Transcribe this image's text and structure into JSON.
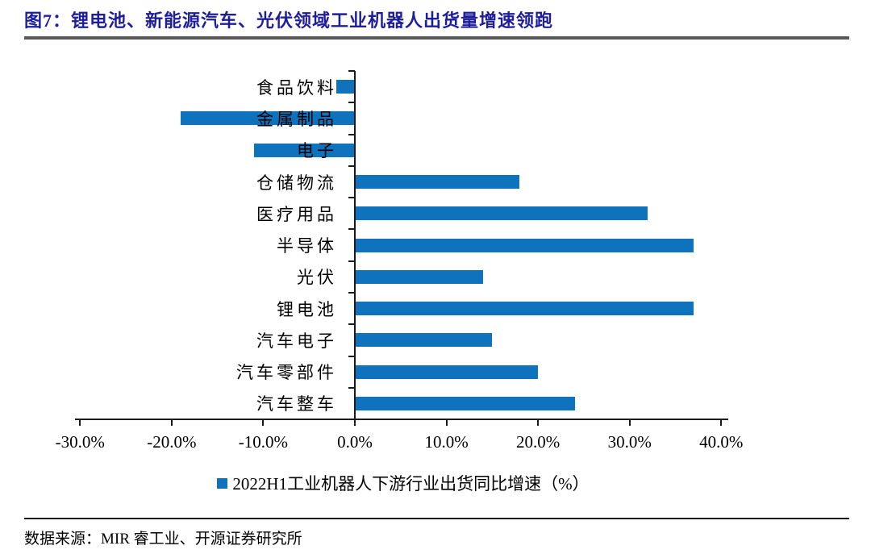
{
  "title": "图7：锂电池、新能源汽车、光伏领域工业机器人出货量增速领跑",
  "source": "数据来源：MIR 睿工业、开源证券研究所",
  "legend": {
    "label": "2022H1工业机器人下游行业出货同比增速（%）"
  },
  "colors": {
    "bar": "#0E73BC",
    "title": "#1E1E9C",
    "title_rule": "#595959",
    "axis": "#1A1A1A"
  },
  "chart_data": {
    "type": "bar",
    "orientation": "horizontal",
    "title": "图7：锂电池、新能源汽车、光伏领域工业机器人出货量增速领跑",
    "categories": [
      "食品饮料",
      "金属制品",
      "电子",
      "仓储物流",
      "医疗用品",
      "半导体",
      "光伏",
      "锂电池",
      "汽车电子",
      "汽车零部件",
      "汽车整车"
    ],
    "values": [
      -2,
      -19,
      -11,
      18,
      32,
      37,
      14,
      37,
      15,
      20,
      24
    ],
    "unit": "%",
    "xlabel": "",
    "ylabel": "",
    "xlim": [
      -30,
      40
    ],
    "x_tick_values": [
      -30,
      -20,
      -10,
      0,
      10,
      20,
      30,
      40
    ],
    "x_tick_labels": [
      "-30.0%",
      "-20.0%",
      "-10.0%",
      "0.0%",
      "10.0%",
      "20.0%",
      "30.0%",
      "40.0%"
    ],
    "grid": false,
    "legend_position": "bottom",
    "legend_entries": [
      "2022H1工业机器人下游行业出货同比增速（%）"
    ]
  }
}
